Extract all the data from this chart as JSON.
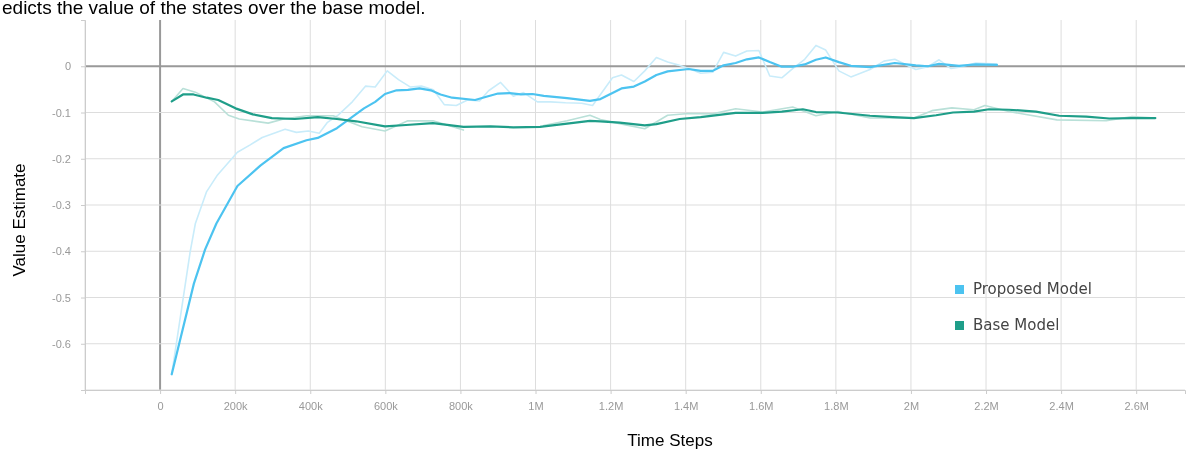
{
  "chart_data": {
    "type": "line",
    "xlabel": "Time Steps",
    "ylabel": "Value Estimate",
    "annotations": [
      "edicts the value of the states over the base model."
    ],
    "xlim": [
      -200000,
      2730000
    ],
    "ylim": [
      -0.7,
      0.1
    ],
    "xticks": [
      {
        "value": -200000,
        "label": null
      },
      0,
      {
        "value": 200000,
        "label": "200k"
      },
      {
        "value": 400000,
        "label": "400k"
      },
      {
        "value": 600000,
        "label": "600k"
      },
      {
        "value": 800000,
        "label": "800k"
      },
      {
        "value": 1000000,
        "label": "1M"
      },
      {
        "value": 1200000,
        "label": "1.2M"
      },
      {
        "value": 1400000,
        "label": "1.4M"
      },
      {
        "value": 1600000,
        "label": "1.6M"
      },
      {
        "value": 1800000,
        "label": "1.8M"
      },
      {
        "value": 2000000,
        "label": "2M"
      },
      {
        "value": 2200000,
        "label": "2.2M"
      },
      {
        "value": 2400000,
        "label": "2.4M"
      },
      {
        "value": 2600000,
        "label": "2.6M"
      }
    ],
    "yticks": [
      {
        "value": -0.7,
        "label": null
      },
      -0.6,
      -0.5,
      -0.4,
      -0.3,
      -0.2,
      -0.1,
      0
    ],
    "grid": true,
    "legend": "bottom right",
    "line_style": "solid",
    "series": [
      {
        "color": "#c9ecfa",
        "x": [
          31000,
          80000,
          94000,
          124000,
          153000,
          206000,
          240000,
          272000,
          333000,
          363000,
          395000,
          424000,
          445000,
          475000,
          512000,
          547000,
          573000,
          605000,
          635000,
          667000,
          696000,
          728000,
          757000,
          789000,
          819000,
          851000,
          875000,
          907000,
          941000,
          968000,
          1005000,
          1040000,
          1080000,
          1123000,
          1152000,
          1173000,
          1205000,
          1229000,
          1262000,
          1291000,
          1322000,
          1352000,
          1379000,
          1408000,
          1440000,
          1472000,
          1501000,
          1533000,
          1563000,
          1595000,
          1624000,
          1656000,
          1685000,
          1717000,
          1747000,
          1773000,
          1808000,
          1840000,
          1891000,
          1928000,
          1957000,
          2013000,
          2045000,
          2075000,
          2107000,
          2128000,
          2173000,
          2229000
        ],
        "values": [
          -0.666,
          -0.402,
          -0.34,
          -0.271,
          -0.235,
          -0.186,
          -0.17,
          -0.154,
          -0.136,
          -0.143,
          -0.14,
          -0.145,
          -0.122,
          -0.105,
          -0.077,
          -0.043,
          -0.045,
          -0.01,
          -0.029,
          -0.045,
          -0.043,
          -0.051,
          -0.083,
          -0.085,
          -0.073,
          -0.075,
          -0.053,
          -0.035,
          -0.065,
          -0.057,
          -0.077,
          -0.077,
          -0.079,
          -0.08,
          -0.085,
          -0.061,
          -0.025,
          -0.019,
          -0.033,
          -0.01,
          0.019,
          0.009,
          0.003,
          -0.005,
          -0.015,
          -0.013,
          0.03,
          0.022,
          0.033,
          0.034,
          -0.021,
          -0.025,
          -0.005,
          0.015,
          0.045,
          0.035,
          -0.01,
          -0.023,
          -0.007,
          0.011,
          0.015,
          -0.007,
          -0.001,
          0.014,
          -0.005,
          -0.002,
          0.007,
          0.005
        ]
      },
      {
        "color": "#b9e0d8",
        "x": [
          31000,
          61000,
          94000,
          145000,
          182000,
          211000,
          288000,
          329000,
          390000,
          461000,
          538000,
          599000,
          660000,
          727000,
          808000,
          869000,
          941000,
          1022000,
          1084000,
          1145000,
          1173000,
          1224000,
          1291000,
          1352000,
          1408000,
          1472000,
          1533000,
          1605000,
          1685000,
          1747000,
          1805000,
          1891000,
          2008000,
          2056000,
          2109000,
          2168000,
          2197000,
          2261000,
          2389000,
          2520000,
          2589000,
          2651000
        ],
        "values": [
          -0.076,
          -0.048,
          -0.056,
          -0.077,
          -0.106,
          -0.114,
          -0.123,
          -0.114,
          -0.107,
          -0.107,
          -0.131,
          -0.14,
          -0.118,
          -0.118,
          -0.138,
          null,
          null,
          -0.128,
          -0.118,
          -0.106,
          -0.115,
          -0.124,
          -0.135,
          -0.106,
          -0.102,
          -0.103,
          -0.092,
          -0.099,
          -0.088,
          -0.107,
          -0.098,
          -0.112,
          -0.112,
          -0.096,
          -0.09,
          -0.094,
          -0.085,
          -0.098,
          -0.116,
          -0.118,
          -0.109,
          -0.112
        ]
      },
      {
        "name": "Proposed Model",
        "color": "#4cc3f0",
        "x": [
          31000,
          90000,
          120000,
          150000,
          206000,
          267000,
          329000,
          390000,
          420000,
          471000,
          543000,
          573000,
          599000,
          630000,
          660000,
          691000,
          721000,
          747000,
          778000,
          839000,
          869000,
          900000,
          931000,
          961000,
          992000,
          1022000,
          1084000,
          1145000,
          1173000,
          1229000,
          1262000,
          1291000,
          1322000,
          1352000,
          1408000,
          1440000,
          1472000,
          1501000,
          1533000,
          1563000,
          1595000,
          1624000,
          1656000,
          1685000,
          1717000,
          1747000,
          1773000,
          1808000,
          1840000,
          1891000,
          1957000,
          2013000,
          2045000,
          2075000,
          2128000,
          2173000,
          2229000
        ],
        "values": [
          -0.666,
          -0.47,
          -0.396,
          -0.34,
          -0.259,
          -0.215,
          -0.177,
          -0.16,
          -0.155,
          -0.134,
          -0.091,
          -0.077,
          -0.06,
          -0.052,
          -0.051,
          -0.048,
          -0.052,
          -0.061,
          -0.068,
          -0.073,
          -0.066,
          -0.059,
          -0.058,
          -0.061,
          -0.06,
          -0.064,
          -0.069,
          -0.075,
          -0.071,
          -0.048,
          -0.044,
          -0.033,
          -0.019,
          -0.011,
          -0.006,
          -0.01,
          -0.01,
          0.002,
          0.007,
          0.015,
          0.019,
          0.009,
          -0.001,
          -0.001,
          0.004,
          0.014,
          0.019,
          0.009,
          0.001,
          -0.002,
          0.007,
          0.002,
          0,
          0.005,
          0.001,
          0.004,
          0.003
        ]
      },
      {
        "name": "Base Model",
        "color": "#1f9e89",
        "x": [
          31000,
          61000,
          89000,
          124000,
          155000,
          201000,
          247000,
          298000,
          359000,
          420000,
          471000,
          522000,
          599000,
          655000,
          727000,
          808000,
          880000,
          941000,
          1012000,
          1073000,
          1145000,
          1173000,
          1224000,
          1291000,
          1322000,
          1384000,
          1440000,
          1533000,
          1605000,
          1656000,
          1712000,
          1747000,
          1805000,
          1891000,
          1952000,
          2008000,
          2067000,
          2112000,
          2168000,
          2208000,
          2261000,
          2333000,
          2395000,
          2467000,
          2528000,
          2589000,
          2651000
        ],
        "values": [
          -0.076,
          -0.061,
          -0.061,
          -0.068,
          -0.073,
          -0.091,
          -0.104,
          -0.112,
          -0.114,
          -0.11,
          -0.114,
          -0.119,
          -0.13,
          -0.127,
          -0.123,
          -0.131,
          -0.13,
          -0.132,
          -0.131,
          -0.125,
          -0.118,
          -0.119,
          -0.122,
          -0.128,
          -0.125,
          -0.114,
          -0.11,
          -0.101,
          -0.101,
          -0.098,
          -0.093,
          -0.099,
          -0.1,
          -0.107,
          -0.11,
          -0.112,
          -0.106,
          -0.1,
          -0.098,
          -0.093,
          -0.094,
          -0.098,
          -0.107,
          -0.109,
          -0.113,
          -0.112,
          -0.112
        ]
      }
    ]
  }
}
